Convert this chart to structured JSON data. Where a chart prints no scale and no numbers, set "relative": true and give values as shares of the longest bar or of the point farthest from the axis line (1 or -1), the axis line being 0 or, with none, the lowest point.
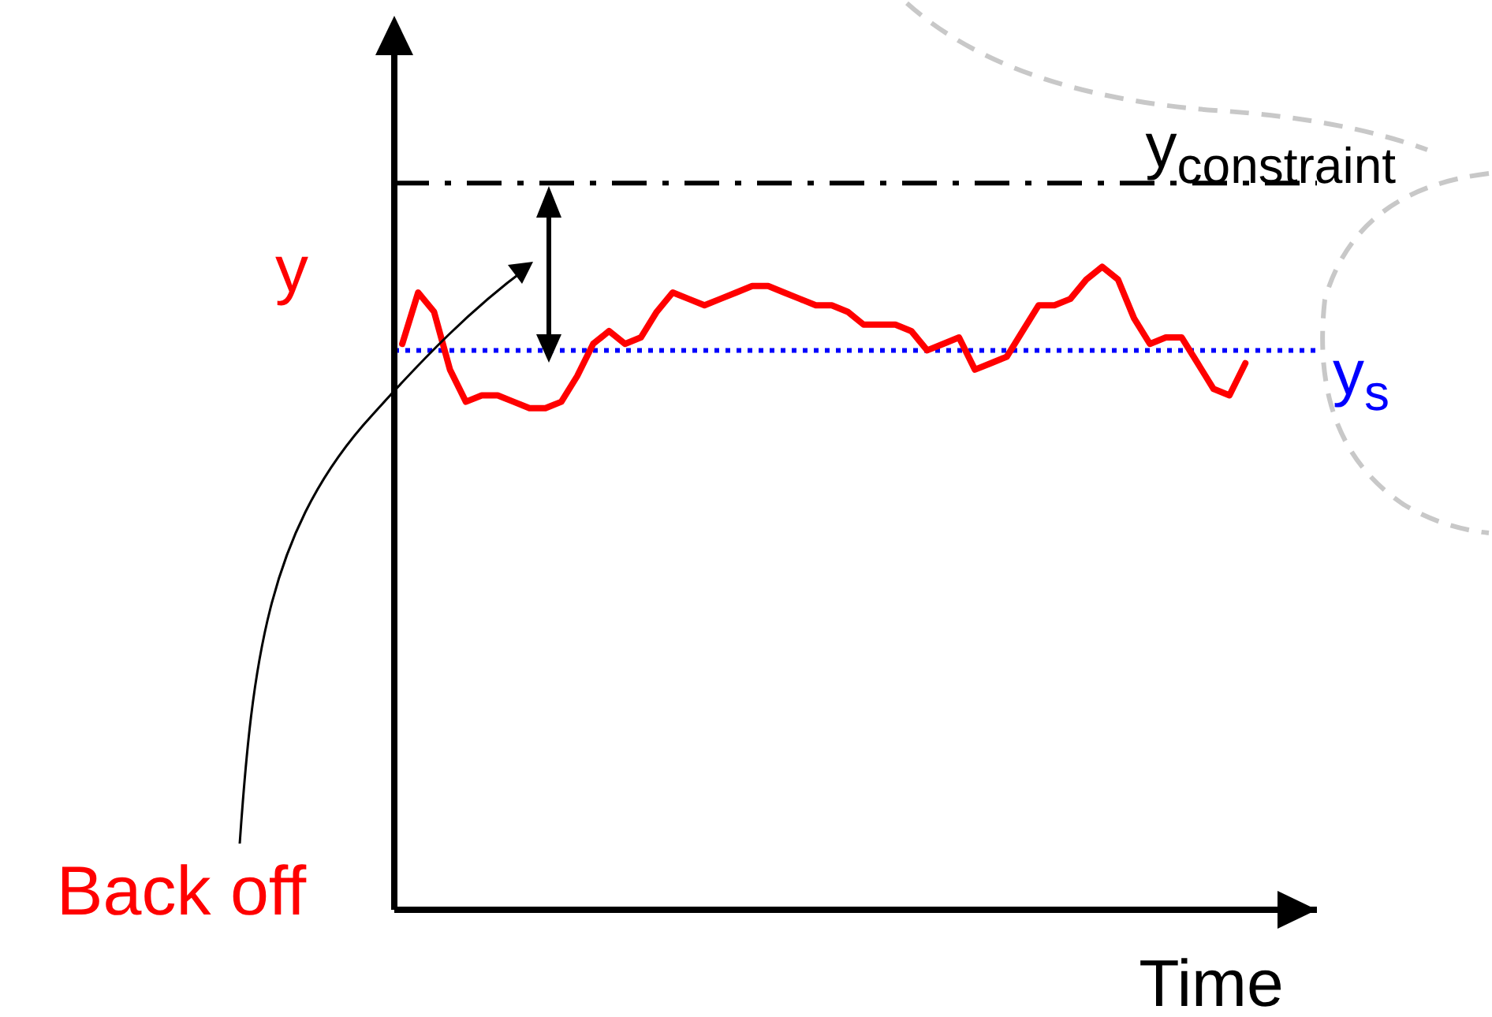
{
  "chart_data": {
    "type": "line",
    "relative": true,
    "xlabel": "Time",
    "ylabel": "y",
    "categories": [
      null,
      null,
      null,
      null,
      null,
      null,
      null,
      null,
      null,
      null,
      null,
      null,
      null,
      null,
      null,
      null,
      null,
      null,
      null,
      null,
      null,
      null,
      null,
      null,
      null,
      null,
      null,
      null,
      null,
      null,
      null,
      null,
      null,
      null,
      null,
      null,
      null,
      null,
      null,
      null,
      null,
      null,
      null,
      null,
      null,
      null,
      null,
      null,
      null,
      null,
      null,
      null,
      null,
      null,
      null,
      null,
      null,
      null
    ],
    "series": [
      {
        "color": "#ff0000",
        "values": [
          0.88,
          0.96,
          0.93,
          0.84,
          0.79,
          0.8,
          0.8,
          0.79,
          0.78,
          0.78,
          0.79,
          0.83,
          0.88,
          0.9,
          0.88,
          0.89,
          0.93,
          0.96,
          0.95,
          0.94,
          0.95,
          0.96,
          0.97,
          0.97,
          0.96,
          0.95,
          0.94,
          0.94,
          0.93,
          0.91,
          0.91,
          0.91,
          0.9,
          0.87,
          0.88,
          0.89,
          0.84,
          0.85,
          0.86,
          0.9,
          0.94,
          0.94,
          0.95,
          0.98,
          1.0,
          0.98,
          0.92,
          0.88,
          0.89,
          0.89,
          0.85,
          0.81,
          0.8,
          0.85,
          null,
          null,
          null,
          null
        ]
      }
    ],
    "ref_lines": [
      {
        "axis": "y",
        "value": 1.13,
        "label": "y$_{constraint}$",
        "color": "#000000",
        "line_style": "dashed"
      },
      {
        "axis": "y",
        "value": 0.87,
        "label": "y$_{s}$",
        "color": "#0000ff",
        "line_style": "dotted"
      }
    ],
    "annotations": [
      "Back off"
    ]
  }
}
